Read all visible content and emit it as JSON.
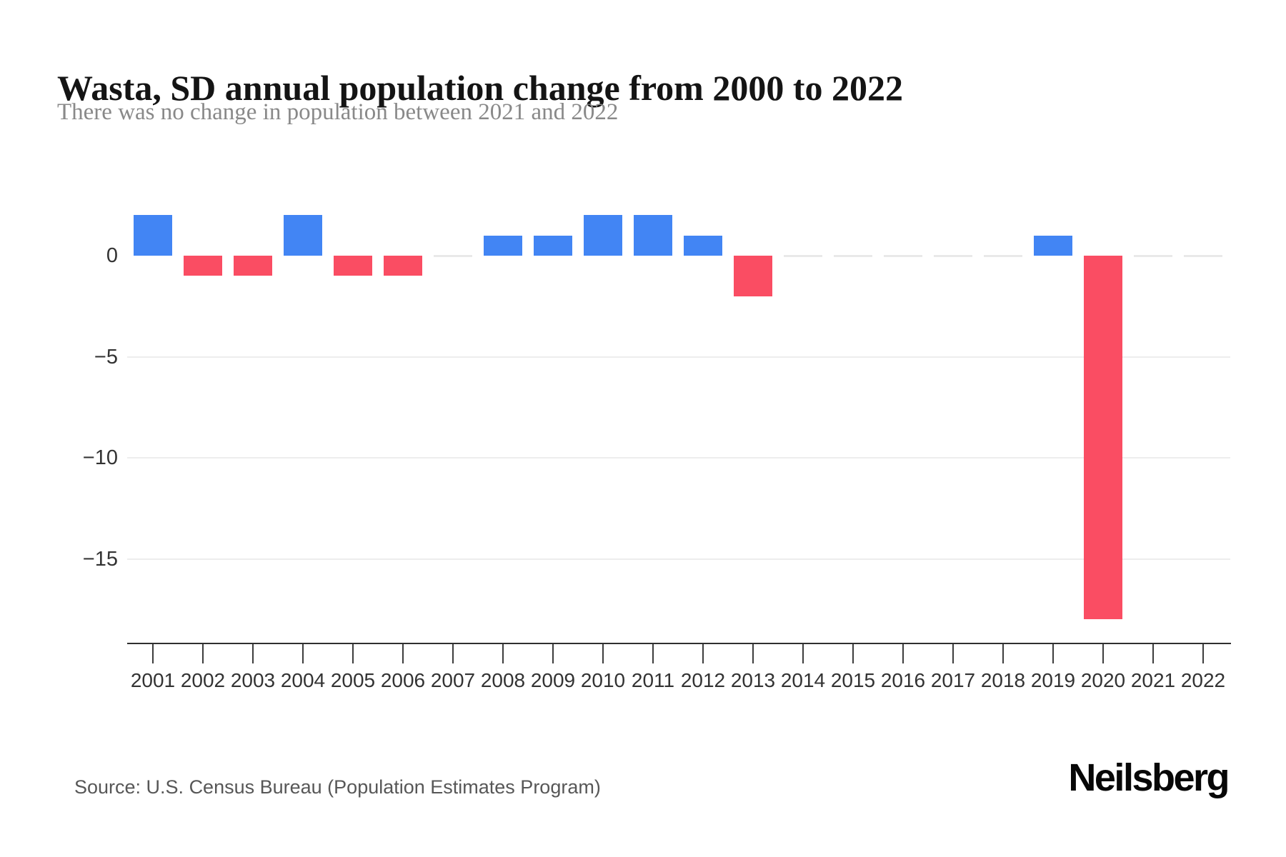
{
  "header": {
    "title": "Wasta, SD annual population change from 2000 to 2022",
    "subtitle": "There was no change in population between 2021 and 2022"
  },
  "footer": {
    "source": "Source: U.S. Census Bureau (Population Estimates Program)",
    "brand": "Neilsberg"
  },
  "colors": {
    "positive_bar": "#4285f4",
    "negative_bar": "#fa4d63",
    "gridline": "#ededed",
    "zero_segment": "#e9e9e9",
    "axis_line": "#2f2f2f",
    "axis_label": "#333333"
  },
  "chart_data": {
    "type": "bar",
    "title": "Wasta, SD annual population change from 2000 to 2022",
    "subtitle": "There was no change in population between 2021 and 2022",
    "xlabel": "",
    "ylabel": "",
    "categories": [
      "2001",
      "2002",
      "2003",
      "2004",
      "2005",
      "2006",
      "2007",
      "2008",
      "2009",
      "2010",
      "2011",
      "2012",
      "2013",
      "2014",
      "2015",
      "2016",
      "2017",
      "2018",
      "2019",
      "2020",
      "2021",
      "2022"
    ],
    "values": [
      2,
      -1,
      -1,
      2,
      -1,
      -1,
      0,
      1,
      1,
      2,
      2,
      1,
      -2,
      0,
      0,
      0,
      0,
      0,
      1,
      -18,
      0,
      0
    ],
    "yticks": [
      {
        "value": 0,
        "label": "0"
      },
      {
        "value": -5,
        "label": "−5"
      },
      {
        "value": -10,
        "label": "−10"
      },
      {
        "value": -15,
        "label": "−15"
      }
    ],
    "ylim": [
      -19.2,
      2.6
    ],
    "grid": true,
    "legend": false,
    "positive_color": "#4285f4",
    "negative_color": "#fa4d63"
  }
}
